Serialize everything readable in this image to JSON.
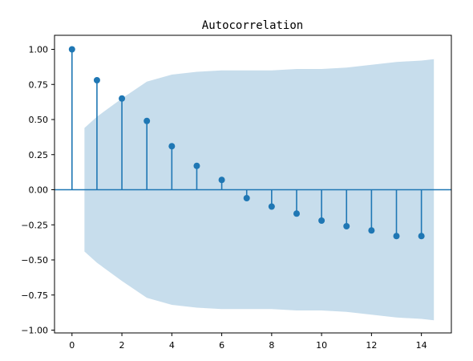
{
  "chart_data": {
    "type": "stem",
    "title": "Autocorrelation",
    "xlabel": "",
    "ylabel": "",
    "xlim": [
      -0.7,
      15.2
    ],
    "ylim": [
      -1.02,
      1.1
    ],
    "xticks": [
      0,
      2,
      4,
      6,
      8,
      10,
      12,
      14
    ],
    "xtick_labels": [
      "0",
      "2",
      "4",
      "6",
      "8",
      "10",
      "12",
      "14"
    ],
    "yticks": [
      1.0,
      0.75,
      0.5,
      0.25,
      0.0,
      -0.25,
      -0.5,
      -0.75,
      -1.0
    ],
    "ytick_labels": [
      "1.00",
      "0.75",
      "0.50",
      "0.25",
      "0.00",
      "−0.25",
      "−0.50",
      "−0.75",
      "−1.00"
    ],
    "grid": false,
    "lags": [
      0,
      1,
      2,
      3,
      4,
      5,
      6,
      7,
      8,
      9,
      10,
      11,
      12,
      13,
      14
    ],
    "acf": [
      1.0,
      0.78,
      0.65,
      0.49,
      0.31,
      0.17,
      0.07,
      -0.06,
      -0.12,
      -0.17,
      -0.22,
      -0.26,
      -0.29,
      -0.33,
      -0.33
    ],
    "confidence_band": {
      "x": [
        0.5,
        1,
        2,
        3,
        4,
        5,
        6,
        7,
        8,
        9,
        10,
        11,
        12,
        13,
        14,
        14.5
      ],
      "upper": [
        0.44,
        0.52,
        0.65,
        0.77,
        0.82,
        0.84,
        0.85,
        0.85,
        0.85,
        0.86,
        0.86,
        0.87,
        0.89,
        0.91,
        0.92,
        0.93
      ],
      "lower": [
        -0.44,
        -0.52,
        -0.65,
        -0.77,
        -0.82,
        -0.84,
        -0.85,
        -0.85,
        -0.85,
        -0.86,
        -0.86,
        -0.87,
        -0.89,
        -0.91,
        -0.92,
        -0.93
      ]
    },
    "colors": {
      "stem": "#1f77b4",
      "band": "#1f77b4",
      "zero_line": "#1f77b4",
      "axes": "#000000"
    }
  }
}
